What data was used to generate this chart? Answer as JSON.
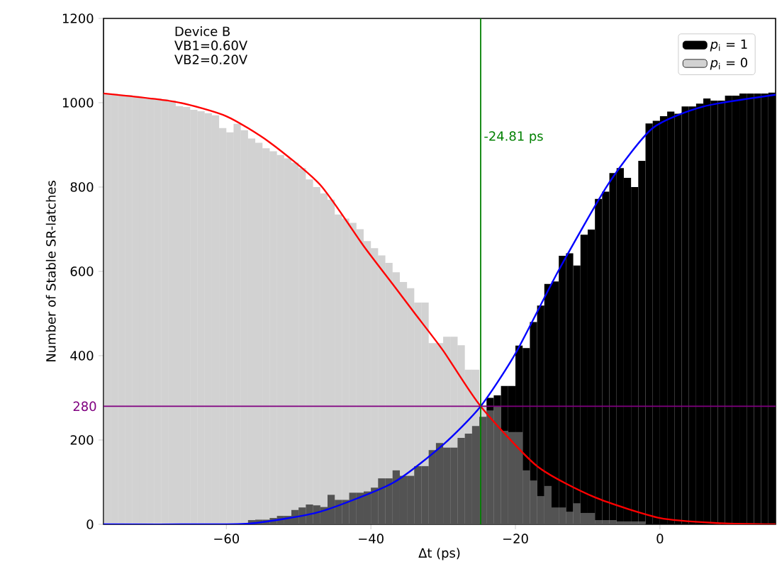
{
  "chart_data": {
    "type": "histogram",
    "xlabel": "Δt (ps)",
    "ylabel": "Number of Stable SR-latches",
    "annotations": [
      "Device B",
      "VB1=0.60V",
      "VB2=0.20V"
    ],
    "bins": [
      -77,
      -76,
      -75,
      -74,
      -73,
      -72,
      -71,
      -70,
      -69,
      -68,
      -67,
      -66,
      -65,
      -64,
      -63,
      -62,
      -61,
      -60,
      -59,
      -58,
      -57,
      -56,
      -55,
      -54,
      -53,
      -52,
      -51,
      -50,
      -49,
      -48,
      -47,
      -46,
      -45,
      -44,
      -43,
      -42,
      -41,
      -40,
      -39,
      -38,
      -37,
      -36,
      -35,
      -34,
      -33,
      -32,
      -31,
      -30,
      -29,
      -28,
      -27,
      -26,
      -25,
      -24,
      -23,
      -22,
      -21,
      -20,
      -19,
      -18,
      -17,
      -16,
      -15,
      -14,
      -13,
      -12,
      -11,
      -10,
      -9,
      -8,
      -7,
      -6,
      -5,
      -4,
      -3,
      -2,
      -1,
      0,
      1,
      2,
      3,
      4,
      5,
      6,
      7,
      8,
      9,
      10,
      11,
      12,
      13,
      14,
      15,
      16
    ],
    "xlim": [
      -77,
      16
    ],
    "ylim": [
      0,
      1200
    ],
    "xticks": [
      {
        "value": -60,
        "label": "−60"
      },
      {
        "value": -40,
        "label": "−40"
      },
      {
        "value": -20,
        "label": "−20"
      },
      {
        "value": 0,
        "label": "0"
      }
    ],
    "yticks": [
      0,
      200,
      400,
      600,
      800,
      1000,
      1200
    ],
    "legend": "top right",
    "series": [
      {
        "name": "*p*$_{i}$ = 1",
        "color": "#000000",
        "values": [
          0,
          0,
          0,
          0,
          0,
          0,
          0,
          0,
          0,
          0,
          0,
          0,
          0,
          0,
          0,
          0,
          0,
          null,
          null,
          null,
          10,
          11,
          11,
          15,
          20,
          20,
          34,
          40,
          47,
          45,
          41,
          70,
          58,
          58,
          75,
          75,
          78,
          87,
          109,
          109,
          128,
          115,
          115,
          138,
          138,
          176,
          193,
          182,
          182,
          205,
          215,
          233,
          255,
          300,
          306,
          328,
          328,
          424,
          418,
          480,
          519,
          570,
          576,
          637,
          643,
          614,
          687,
          699,
          772,
          789,
          833,
          845,
          822,
          800,
          862,
          951,
          957,
          968,
          979,
          974,
          991,
          991,
          998,
          1010,
          1005,
          1005,
          1017,
          1017,
          1022,
          1022,
          1022,
          1022,
          1024
        ]
      },
      {
        "name": "*p*$_{i}$ = 0",
        "color": "#a6a6a6",
        "values": [
          1022,
          1021,
          1019,
          1018,
          1016,
          1013,
          1011,
          1010,
          1008,
          1005,
          992,
          990,
          983,
          980,
          975,
          970,
          940,
          930,
          950,
          935,
          915,
          905,
          892,
          885,
          876,
          868,
          858,
          845,
          818,
          800,
          785,
          770,
          735,
          725,
          715,
          700,
          672,
          655,
          638,
          620,
          598,
          575,
          560,
          526,
          526,
          430,
          430,
          445,
          445,
          425,
          367,
          367,
          283,
          270,
          280,
          222,
          219,
          219,
          128,
          104,
          67,
          91,
          40,
          40,
          30,
          50,
          27,
          27,
          10,
          10,
          10,
          7,
          7,
          7,
          7,
          null,
          0,
          0,
          0,
          0,
          0,
          0,
          0,
          0,
          0,
          0,
          0,
          0,
          0,
          0,
          0,
          0,
          0
        ]
      },
      {
        "type": "line",
        "color": "#ff0000",
        "x": [
          -77,
          -67,
          -60,
          -54,
          -47,
          -41,
          -37,
          -34,
          -30,
          -24.81,
          -17,
          -9,
          0,
          8,
          16
        ],
        "values": [
          1022,
          1002,
          968,
          906,
          805,
          660,
          570,
          502,
          412,
          280,
          138,
          64,
          15,
          3,
          0
        ]
      },
      {
        "type": "line",
        "color": "#0000ff",
        "x": [
          -77,
          -62,
          -56,
          -47,
          -37,
          -30,
          -24.81,
          -20,
          -14,
          -7,
          -1,
          6,
          16
        ],
        "values": [
          0,
          0,
          3,
          30,
          98,
          189,
          280,
          405,
          603,
          811,
          940,
          991,
          1019
        ]
      }
    ],
    "ref_lines": [
      {
        "axis": "x",
        "value": -24.81,
        "label": "-24.81 ps",
        "color": "#008000"
      },
      {
        "axis": "y",
        "value": 280,
        "label": "280",
        "color": "#800080"
      }
    ]
  }
}
